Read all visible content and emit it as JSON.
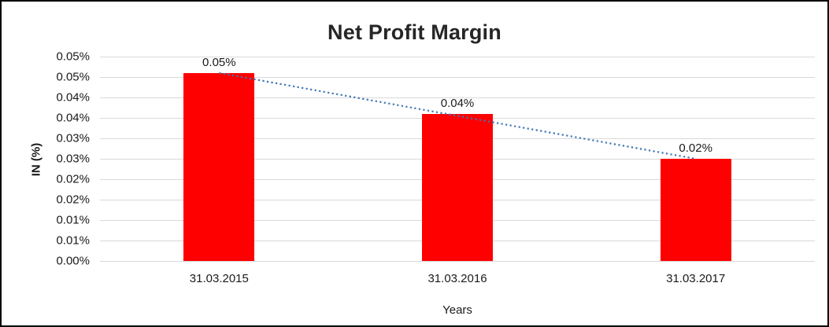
{
  "chart_data": {
    "type": "bar",
    "title": "Net Profit Margin",
    "xlabel": "Years",
    "ylabel": "IN (%)",
    "categories": [
      "31.03.2015",
      "31.03.2016",
      "31.03.2017"
    ],
    "values": [
      0.046,
      0.036,
      0.025
    ],
    "data_labels": [
      "0.05%",
      "0.04%",
      "0.02%"
    ],
    "ylim": [
      0,
      0.05
    ],
    "y_tick_labels_top_to_bottom": [
      "0.05%",
      "0.05%",
      "0.04%",
      "0.04%",
      "0.03%",
      "0.03%",
      "0.02%",
      "0.02%",
      "0.01%",
      "0.01%",
      "0.00%"
    ],
    "grid": true,
    "legend": "none",
    "bar_color": "#FF0000",
    "trendline": {
      "type": "linear",
      "style": "dotted",
      "color": "#4076B4"
    }
  },
  "colors": {
    "gridline": "#D9D9D9",
    "text": "#1A1A1A",
    "title": "#262626",
    "border": "#000000",
    "background": "#FFFFFF"
  }
}
